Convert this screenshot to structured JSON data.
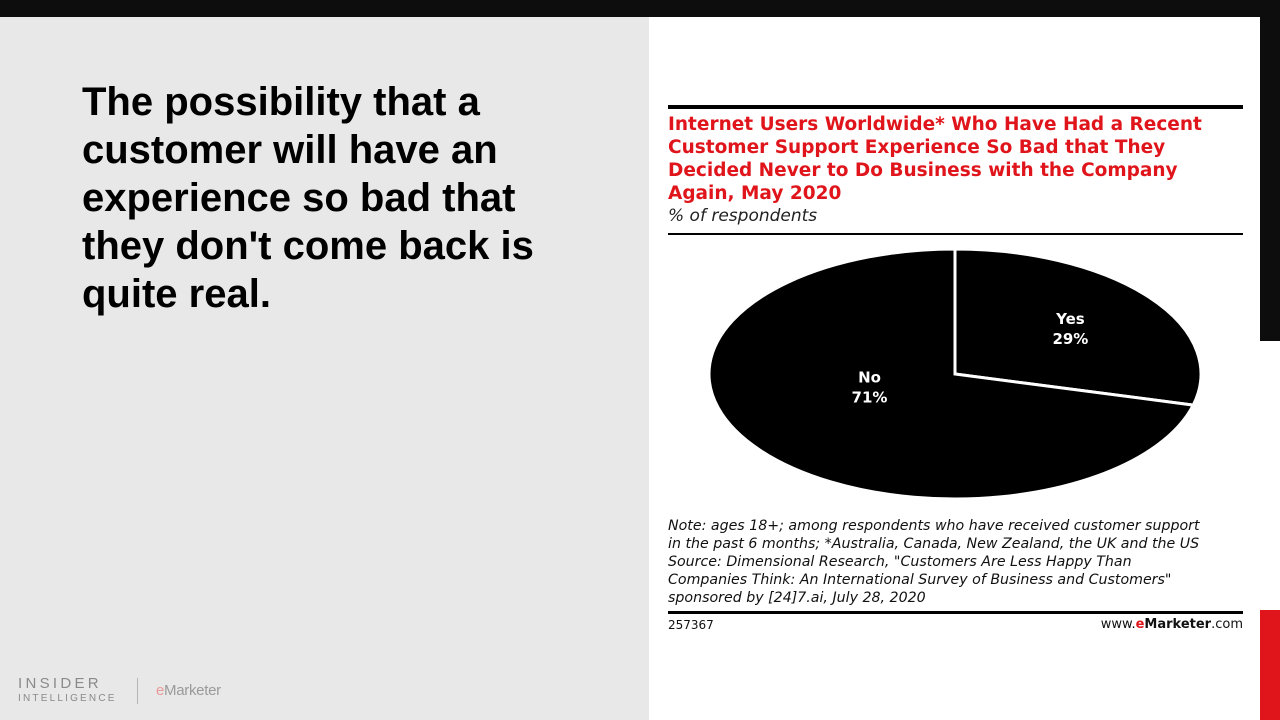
{
  "slide": {
    "headline": "The possibility that a customer will have an experience so bad that they don't come back is quite real."
  },
  "chart_data": {
    "type": "pie",
    "title": "Internet Users Worldwide* Who Have Had a Recent Customer Support Experience So Bad that They Decided Never to Do Business with the Company Again, May 2020",
    "subtitle": "% of respondents",
    "slices": [
      {
        "label": "Yes",
        "value": 29,
        "value_label": "29%",
        "color": "#000000"
      },
      {
        "label": "No",
        "value": 71,
        "value_label": "71%",
        "color": "#000000"
      }
    ],
    "notes": [
      "Note: ages 18+; among respondents who have received customer support",
      "in the past 6 months; *Australia, Canada, New Zealand, the UK and the US",
      "Source: Dimensional Research, \"Customers Are Less Happy Than",
      "Companies Think: An International Survey of Business and Customers\"",
      "sponsored by [24]7.ai, July 28, 2020"
    ],
    "chart_id": "257367",
    "site": {
      "prefix": "www.",
      "brand_e": "e",
      "brand_rest": "Marketer",
      "suffix": ".com"
    },
    "colors": {
      "title": "#e0151b",
      "slice_fill": "#000000",
      "slice_stroke": "#ffffff"
    }
  },
  "footer": {
    "logo_line1": "INSIDER",
    "logo_line2": "INTELLIGENCE",
    "emarketer_e": "e",
    "emarketer_rest": "Marketer"
  },
  "colors": {
    "accent_red": "#e0151b",
    "panel_gray": "#e8e8e8",
    "dark": "#0d0d0d"
  }
}
